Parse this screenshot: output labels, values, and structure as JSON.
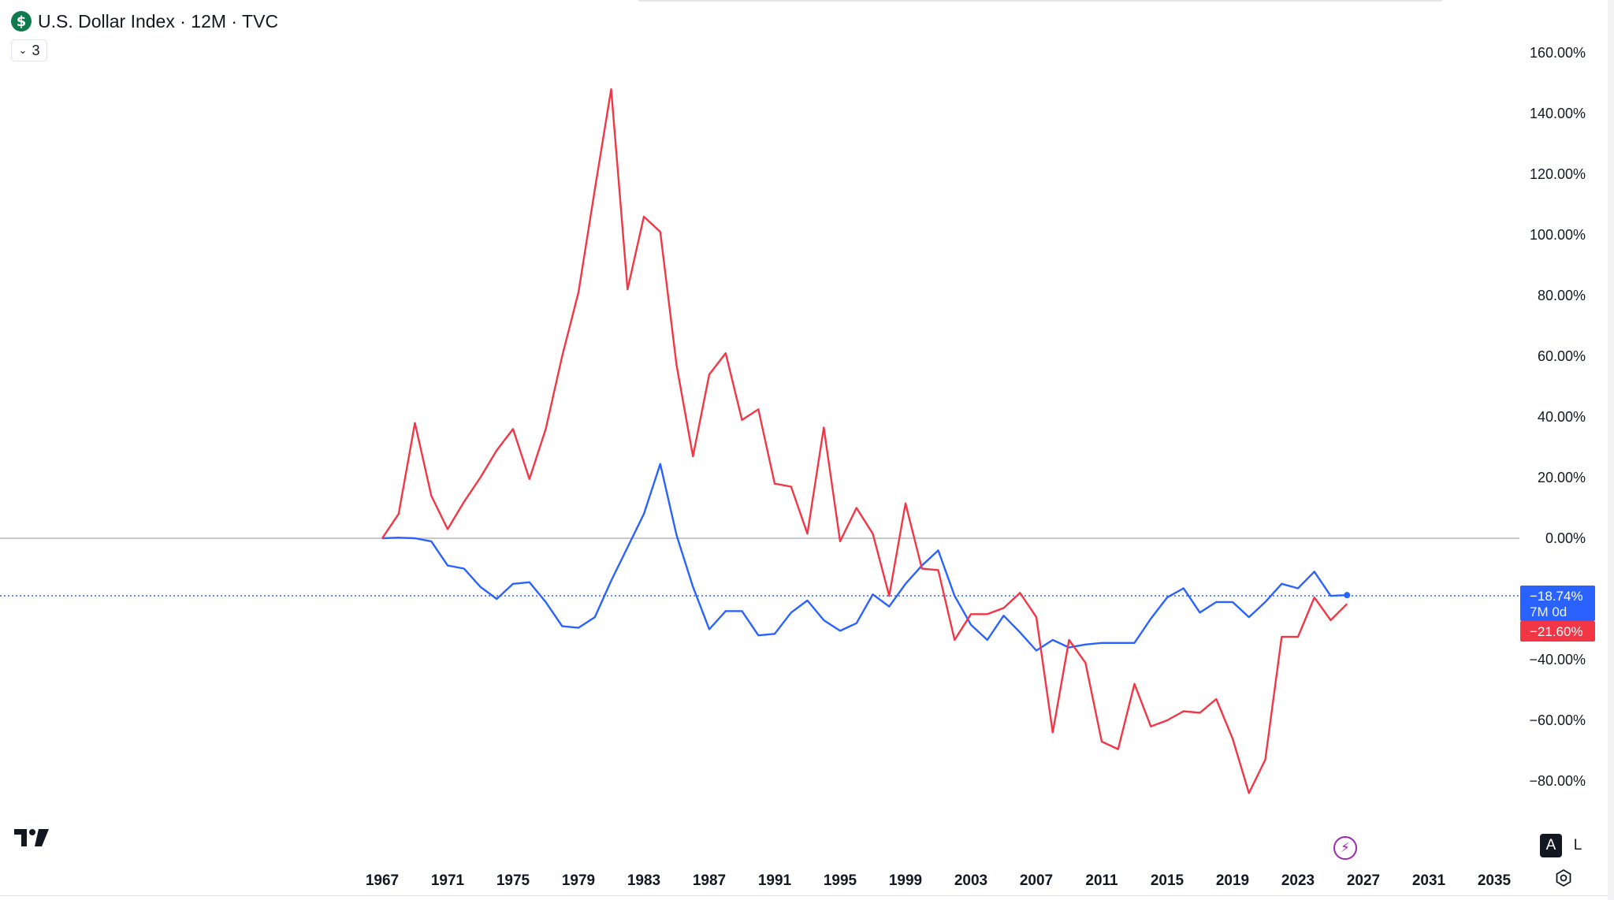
{
  "header": {
    "symbol_icon": "dollar-sign-icon",
    "title": "U.S. Dollar Index · 12M · TVC",
    "indicator_count": "3"
  },
  "colors": {
    "series_blue": "#2962ff",
    "series_red": "#f23645",
    "zero_line": "#b2b5be",
    "accent_purple": "#9c27b0"
  },
  "price_scale": {
    "labels": [
      "160.00%",
      "140.00%",
      "120.00%",
      "100.00%",
      "80.00%",
      "60.00%",
      "40.00%",
      "20.00%",
      "0.00%",
      "−40.00%",
      "−60.00%",
      "−80.00%"
    ],
    "blue_badge_value": "−18.74%",
    "blue_badge_countdown": "7M 0d",
    "red_badge_value": "−21.60%"
  },
  "time_scale": {
    "labels": [
      "1967",
      "1971",
      "1975",
      "1979",
      "1983",
      "1987",
      "1991",
      "1995",
      "1999",
      "2003",
      "2007",
      "2011",
      "2015",
      "2019",
      "2023",
      "2027",
      "2031",
      "2035"
    ]
  },
  "bottom_controls": {
    "auto_label": "A",
    "log_label": "L",
    "replay_icon": "lightning-icon",
    "settings_icon": "gear-icon",
    "logo_icon": "tradingview-logo-icon"
  },
  "chart_data": {
    "type": "line",
    "y_unit": "%",
    "ylim": [
      -80,
      160
    ],
    "xlim": [
      1967,
      2035
    ],
    "grid": false,
    "series": [
      {
        "color": "#2962ff",
        "x": [
          1967,
          1968,
          1969,
          1970,
          1971,
          1972,
          1973,
          1974,
          1975,
          1976,
          1977,
          1978,
          1979,
          1980,
          1981,
          1982,
          1983,
          1984,
          1985,
          1986,
          1987,
          1988,
          1989,
          1990,
          1991,
          1992,
          1993,
          1994,
          1995,
          1996,
          1997,
          1998,
          1999,
          2000,
          2001,
          2002,
          2003,
          2004,
          2005,
          2006,
          2007,
          2008,
          2009,
          2010,
          2011,
          2012,
          2013,
          2014,
          2015,
          2016,
          2017,
          2018,
          2019,
          2020,
          2021,
          2022,
          2023,
          2024,
          2025,
          2026
        ],
        "values": [
          0,
          0.2,
          0,
          -1,
          -9,
          -10,
          -16,
          -20,
          -15,
          -14.5,
          -21,
          -29,
          -29.5,
          -26,
          -14,
          -3,
          8,
          24.5,
          1,
          -16,
          -30,
          -24,
          -24,
          -32,
          -31.5,
          -24.5,
          -20.5,
          -27,
          -30.5,
          -28,
          -18.5,
          -22.5,
          -15,
          -9,
          -4,
          -19,
          -28.5,
          -33.5,
          -25.5,
          -31,
          -37,
          -33.5,
          -36,
          -35,
          -34.5,
          -34.5,
          -34.5,
          -26.5,
          -19.5,
          -16.5,
          -24.5,
          -21,
          -21,
          -26,
          -21,
          -15,
          -16.5,
          -11,
          -19,
          -18.74
        ]
      },
      {
        "color": "#f23645",
        "x": [
          1967,
          1968,
          1969,
          1970,
          1971,
          1972,
          1973,
          1974,
          1975,
          1976,
          1977,
          1978,
          1979,
          1980,
          1981,
          1982,
          1983,
          1984,
          1985,
          1986,
          1987,
          1988,
          1989,
          1990,
          1991,
          1992,
          1993,
          1994,
          1995,
          1996,
          1997,
          1998,
          1999,
          2000,
          2001,
          2002,
          2003,
          2004,
          2005,
          2006,
          2007,
          2008,
          2009,
          2010,
          2011,
          2012,
          2013,
          2014,
          2015,
          2016,
          2017,
          2018,
          2019,
          2020,
          2021,
          2022,
          2023,
          2024,
          2025,
          2026
        ],
        "values": [
          0,
          8,
          38,
          14,
          3,
          12,
          20,
          29,
          36,
          19.5,
          36,
          60,
          81,
          115,
          148,
          82,
          106,
          101,
          57,
          27,
          54,
          61,
          39,
          42.5,
          18,
          17,
          1.5,
          36.5,
          -1,
          10,
          1.5,
          -19,
          11.5,
          -10,
          -10.5,
          -33.5,
          -25,
          -25,
          -23,
          -18,
          -26,
          -64,
          -33.5,
          -41,
          -67,
          -69.5,
          -48,
          -62,
          -60,
          -57,
          -57.5,
          -53,
          -66,
          -84,
          -73,
          -32.5,
          -32.5,
          -19.5,
          -27,
          -21.6
        ]
      }
    ]
  }
}
